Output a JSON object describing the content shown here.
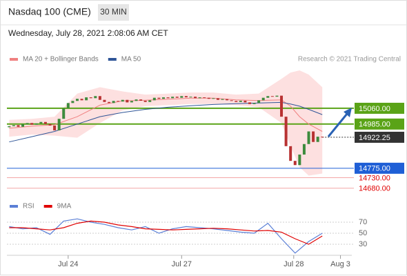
{
  "header": {
    "title": "Nasdaq 100 (CME)",
    "timeframe": "30 MIN",
    "date": "Wednesday, July 28, 2021 2:08:06 AM CET"
  },
  "chart_data": [
    {
      "type": "candlestick",
      "credit": "Research © 2021 Trading Central",
      "xlim": [
        -0.5,
        75.5
      ],
      "ylim": [
        14640,
        15250
      ],
      "xticks": [
        {
          "value": 13,
          "label": "Jul 24"
        },
        {
          "value": 38,
          "label": "Jul 27"
        },
        {
          "value": 62.7,
          "label": "Jul 28"
        },
        {
          "value": 73,
          "label": "Aug 3"
        }
      ],
      "up_color": "#3d8b3d",
      "down_color": "#b83232",
      "open": [
        14970,
        14975,
        14980,
        14972,
        14985,
        14990,
        14982,
        14988,
        14995,
        14985,
        14978,
        14955,
        15010,
        15060,
        15085,
        15095,
        15105,
        15098,
        15112,
        15108,
        15118,
        15100,
        15090,
        15085,
        15095,
        15092,
        15100,
        15088,
        15095,
        15102,
        15096,
        15090,
        15098,
        15110,
        15105,
        15112,
        15108,
        15115,
        15110,
        15118,
        15112,
        15115,
        15108,
        15112,
        15110,
        15105,
        15108,
        15100,
        15104,
        15098,
        15095,
        15090,
        15096,
        15088,
        15080,
        15085,
        15098,
        15110,
        15118,
        15115,
        15120,
        15020,
        14880,
        14810,
        14790,
        14840,
        14890,
        14950,
        14900,
        14925
      ],
      "close": [
        14975,
        14980,
        14972,
        14985,
        14990,
        14982,
        14988,
        14995,
        14985,
        14978,
        14955,
        15010,
        15060,
        15085,
        15095,
        15105,
        15098,
        15112,
        15108,
        15118,
        15100,
        15090,
        15085,
        15095,
        15092,
        15100,
        15088,
        15095,
        15102,
        15096,
        15090,
        15098,
        15110,
        15105,
        15112,
        15108,
        15115,
        15110,
        15118,
        15112,
        15115,
        15108,
        15112,
        15110,
        15105,
        15108,
        15100,
        15104,
        15098,
        15095,
        15090,
        15096,
        15088,
        15080,
        15085,
        15098,
        15110,
        15118,
        15115,
        15120,
        15020,
        14880,
        14810,
        14790,
        14840,
        14890,
        14950,
        14900,
        14925,
        14922.25
      ],
      "series": [
        {
          "name": "MA 20 + Bollinger Bands",
          "color": "#f08080",
          "band_color": "#fde0e0",
          "x": [
            0,
            5,
            10,
            15,
            20,
            25,
            30,
            35,
            40,
            45,
            50,
            55,
            60,
            62,
            64,
            66,
            69
          ],
          "values": [
            14965,
            14975,
            14982,
            15020,
            15075,
            15095,
            15098,
            15103,
            15108,
            15108,
            15100,
            15097,
            15100,
            15070,
            15020,
            14985,
            14950
          ],
          "upper": [
            15005,
            15010,
            15020,
            15130,
            15160,
            15140,
            15125,
            15130,
            15135,
            15135,
            15125,
            15130,
            15200,
            15230,
            15240,
            15220,
            15160
          ],
          "lower": [
            14925,
            14935,
            14930,
            14920,
            14990,
            15050,
            15070,
            15075,
            15080,
            15080,
            15075,
            15065,
            14990,
            14880,
            14780,
            14740,
            14750
          ]
        },
        {
          "name": "MA 50",
          "color": "#2f5597",
          "x": [
            0,
            5,
            10,
            15,
            20,
            25,
            30,
            35,
            40,
            45,
            50,
            55,
            60,
            62,
            64,
            66,
            69
          ],
          "values": [
            14900,
            14925,
            14950,
            14985,
            15020,
            15040,
            15055,
            15065,
            15072,
            15078,
            15082,
            15085,
            15088,
            15080,
            15070,
            15055,
            15030
          ]
        }
      ],
      "levels": [
        {
          "value": 15060,
          "label": "15060.00",
          "color": "#5aa317",
          "kind": "box"
        },
        {
          "value": 14985,
          "label": "14985.00",
          "color": "#5aa317",
          "kind": "box"
        },
        {
          "value": 14922.25,
          "label": "14922.25",
          "color": "#333333",
          "kind": "current"
        },
        {
          "value": 14775,
          "label": "14775.00",
          "color": "#1f5fd6",
          "kind": "box"
        },
        {
          "value": 14730,
          "label": "14730.00",
          "color": "#e00000",
          "kind": "text"
        },
        {
          "value": 14680,
          "label": "14680.00",
          "color": "#e00000",
          "kind": "text"
        }
      ]
    },
    {
      "type": "line",
      "xlim": [
        -0.5,
        75.5
      ],
      "ylim": [
        10,
        85
      ],
      "yticks": [
        70,
        50,
        30
      ],
      "x": [
        0,
        3,
        6,
        9,
        12,
        15,
        18,
        21,
        24,
        27,
        30,
        33,
        36,
        39,
        42,
        45,
        48,
        51,
        54,
        57,
        60,
        63,
        66,
        69
      ],
      "series": [
        {
          "name": "RSI",
          "color": "#5b7fd6",
          "values": [
            62,
            58,
            60,
            48,
            72,
            76,
            70,
            66,
            60,
            56,
            62,
            50,
            58,
            62,
            60,
            58,
            55,
            52,
            50,
            68,
            40,
            14,
            35,
            50
          ]
        },
        {
          "name": "9MA",
          "color": "#e00000",
          "values": [
            60,
            60,
            58,
            56,
            60,
            68,
            72,
            70,
            65,
            62,
            58,
            57,
            56,
            57,
            58,
            59,
            58,
            56,
            54,
            55,
            52,
            40,
            30,
            45
          ]
        }
      ]
    }
  ]
}
